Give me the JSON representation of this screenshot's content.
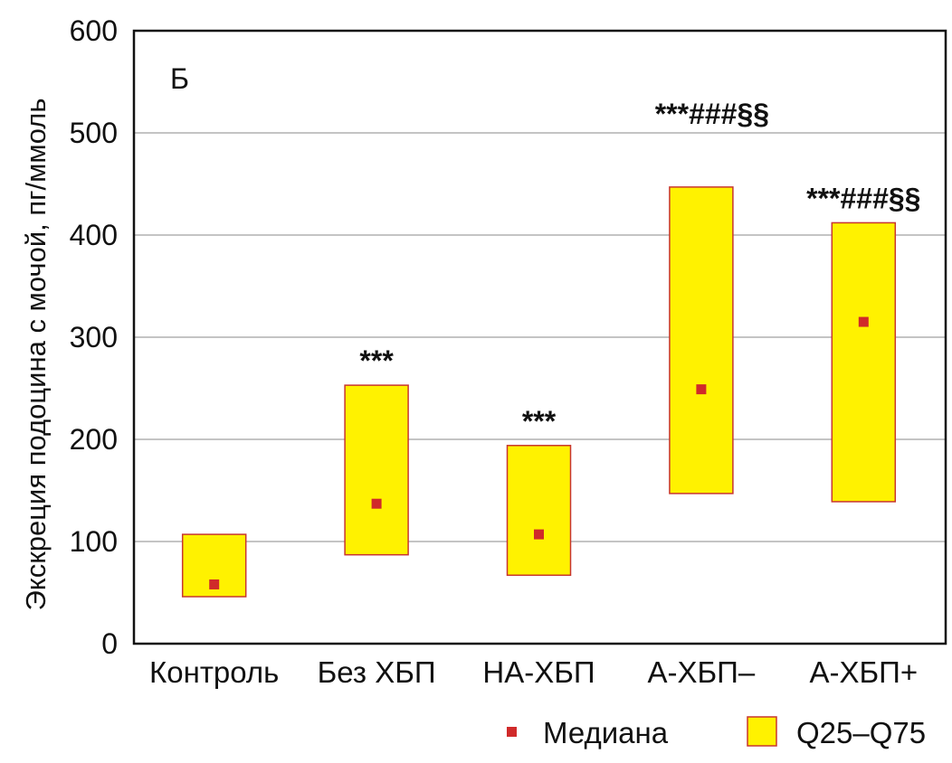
{
  "chart_data": {
    "type": "bar",
    "subtype": "floating-range with median marker",
    "panel_label": "Б",
    "ylabel": "Экскреция подоцина с мочой, пг/ммоль",
    "xlabel": "",
    "ylim": [
      0,
      600
    ],
    "yticks": [
      0,
      100,
      200,
      300,
      400,
      500,
      600
    ],
    "grid": true,
    "categories": [
      "Контроль",
      "Без ХБП",
      "НА-ХБП",
      "А-ХБП–",
      "А-ХБП+"
    ],
    "series": [
      {
        "name": "Q25–Q75",
        "q25": [
          46,
          87,
          67,
          147,
          139
        ],
        "q75": [
          107,
          253,
          194,
          447,
          412
        ]
      },
      {
        "name": "Медиана",
        "values": [
          58,
          137,
          107,
          249,
          315
        ]
      }
    ],
    "annotations": [
      "",
      "***",
      "***",
      "***###§§",
      "***###§§"
    ],
    "legend": {
      "position": "bottom-right",
      "items": [
        "Медиана",
        "Q25–Q75"
      ]
    },
    "colors": {
      "box_fill": "#FFF200",
      "box_stroke": "#C8362F",
      "median": "#D02A2A",
      "grid": "#A0A0A0",
      "axis": "#111111"
    }
  }
}
